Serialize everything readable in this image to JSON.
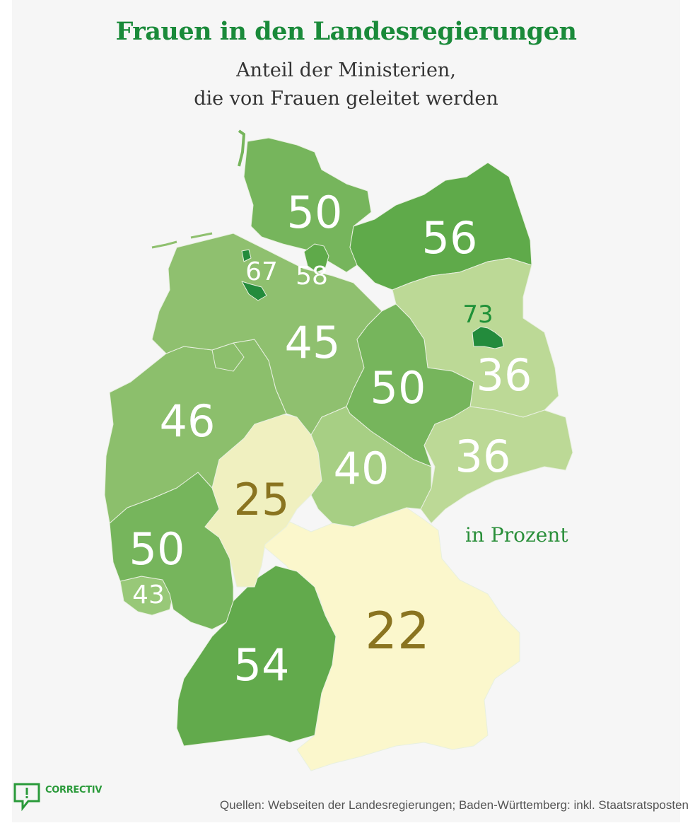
{
  "header": {
    "title": "Frauen in den Landesregierungen",
    "subtitle_line1": "Anteil der Ministerien,",
    "subtitle_line2": "die von Frauen geleitet werden"
  },
  "legend": {
    "unit_label": "in Prozent"
  },
  "footer": {
    "logo_text": "CORRECTIV",
    "source": "Quellen: Webseiten der Landesregierungen; Baden-Württemberg: inkl. Staatsratsposten"
  },
  "colors": {
    "background": "#f6f6f6",
    "title": "#1a8a3a",
    "label_light": "#ffffff",
    "label_dark": "#8a7420",
    "label_green": "#1f9138"
  },
  "chart_data": {
    "type": "choropleth",
    "title": "Frauen in den Landesregierungen",
    "subtitle": "Anteil der Ministerien, die von Frauen geleitet werden",
    "unit": "in Prozent",
    "states": [
      {
        "id": "schleswig-holstein",
        "value": 50,
        "label": "50",
        "fill": "#76b55c"
      },
      {
        "id": "mecklenburg-vorpommern",
        "value": 56,
        "label": "56",
        "fill": "#5faa4a"
      },
      {
        "id": "hamburg",
        "value": 58,
        "label": "58",
        "fill": "#5faa4a"
      },
      {
        "id": "bremen",
        "value": 67,
        "label": "67",
        "fill": "#238b3c"
      },
      {
        "id": "niedersachsen",
        "value": 45,
        "label": "45",
        "fill": "#8fc06f"
      },
      {
        "id": "berlin",
        "value": 73,
        "label": "73",
        "fill": "#238b3c"
      },
      {
        "id": "brandenburg",
        "value": 36,
        "label": "36",
        "fill": "#bcd996"
      },
      {
        "id": "sachsen-anhalt",
        "value": 50,
        "label": "50",
        "fill": "#76b55c"
      },
      {
        "id": "nordrhein-westfalen",
        "value": 46,
        "label": "46",
        "fill": "#8cbf6c"
      },
      {
        "id": "sachsen",
        "value": 36,
        "label": "36",
        "fill": "#bcd996"
      },
      {
        "id": "thueringen",
        "value": 40,
        "label": "40",
        "fill": "#a7cf84"
      },
      {
        "id": "hessen",
        "value": 25,
        "label": "25",
        "fill": "#f0f0c0"
      },
      {
        "id": "rheinland-pfalz",
        "value": 50,
        "label": "50",
        "fill": "#76b55c"
      },
      {
        "id": "saarland",
        "value": 43,
        "label": "43",
        "fill": "#98c878"
      },
      {
        "id": "baden-wuerttemberg",
        "value": 54,
        "label": "54",
        "fill": "#62aa4c"
      },
      {
        "id": "bayern",
        "value": 22,
        "label": "22",
        "fill": "#fbf7cc"
      }
    ]
  }
}
